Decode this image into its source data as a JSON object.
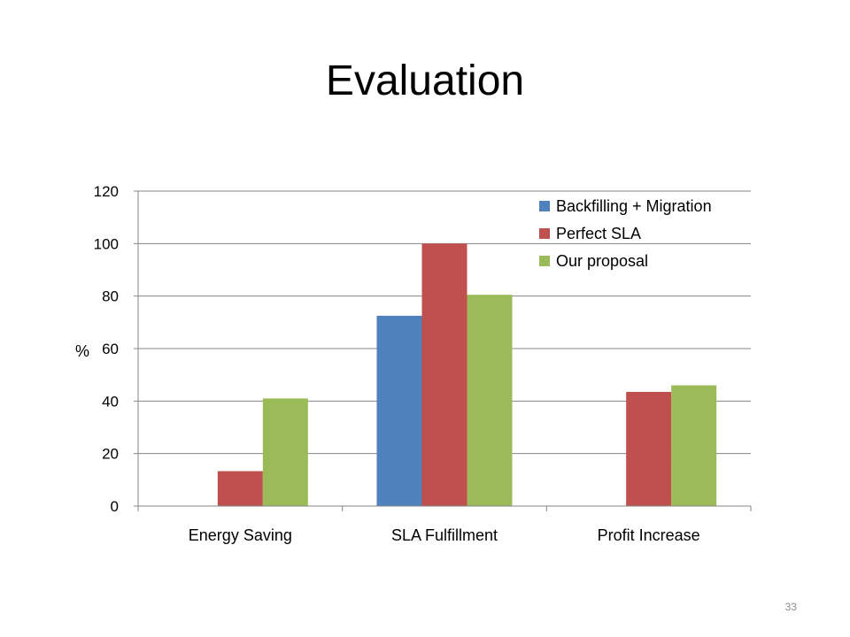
{
  "slide": {
    "title": "Evaluation",
    "page_number": "33"
  },
  "colors": {
    "gridline": "#868686",
    "axis": "#868686"
  },
  "chart_data": {
    "type": "bar",
    "title": "",
    "xlabel": "",
    "ylabel": "%",
    "categories": [
      "Energy Saving",
      "SLA Fulfillment",
      "Profit Increase"
    ],
    "ylim": [
      0,
      120
    ],
    "yticks": [
      0,
      20,
      40,
      60,
      80,
      100,
      120
    ],
    "grid": true,
    "legend_position": "top-right",
    "series": [
      {
        "name": "Backfilling + Migration",
        "color": "#4f81bd",
        "values": [
          0,
          72.5,
          0
        ]
      },
      {
        "name": "Perfect SLA",
        "color": "#c0504d",
        "values": [
          13.3,
          100,
          43.5
        ]
      },
      {
        "name": "Our proposal",
        "color": "#9bbb59",
        "values": [
          41,
          80.5,
          46
        ]
      }
    ]
  }
}
